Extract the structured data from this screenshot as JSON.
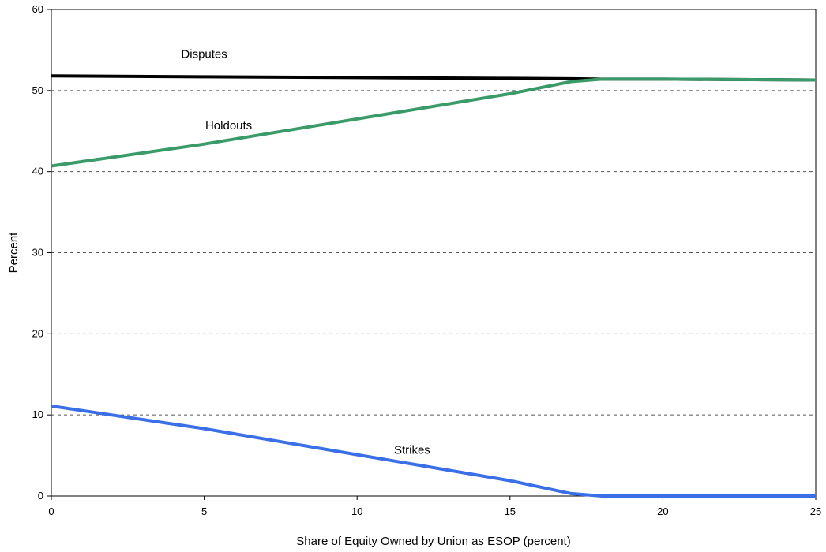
{
  "chart_data": {
    "type": "line",
    "title": "",
    "xlabel": "Share of Equity Owned by Union as ESOP (percent)",
    "ylabel": "Percent",
    "xlim": [
      0,
      25
    ],
    "ylim": [
      0,
      60
    ],
    "xticks": [
      0,
      5,
      10,
      15,
      20,
      25
    ],
    "yticks": [
      0,
      10,
      20,
      30,
      40,
      50,
      60
    ],
    "grid": "horizontal dashed",
    "series": [
      {
        "name": "Disputes",
        "color": "#000000",
        "x": [
          0,
          5,
          10,
          15,
          17,
          18,
          20,
          25
        ],
        "y": [
          51.8,
          51.7,
          51.6,
          51.5,
          51.45,
          51.4,
          51.4,
          51.3
        ]
      },
      {
        "name": "Holdouts",
        "color": "#3a9a6a",
        "x": [
          0,
          5,
          10,
          15,
          17,
          18,
          20,
          25
        ],
        "y": [
          40.7,
          43.4,
          46.5,
          49.6,
          51.1,
          51.4,
          51.4,
          51.3
        ]
      },
      {
        "name": "Strikes",
        "color": "#3a6fe8",
        "x": [
          0,
          5,
          10,
          15,
          17,
          18,
          20,
          25
        ],
        "y": [
          11.1,
          8.3,
          5.1,
          1.9,
          0.3,
          0.0,
          0.0,
          0.0
        ]
      }
    ],
    "annotations": [
      {
        "text": "Disputes",
        "x": 5.0,
        "y": 54.0
      },
      {
        "text": "Holdouts",
        "x": 5.8,
        "y": 45.2
      },
      {
        "text": "Strikes",
        "x": 11.8,
        "y": 5.2
      }
    ]
  }
}
